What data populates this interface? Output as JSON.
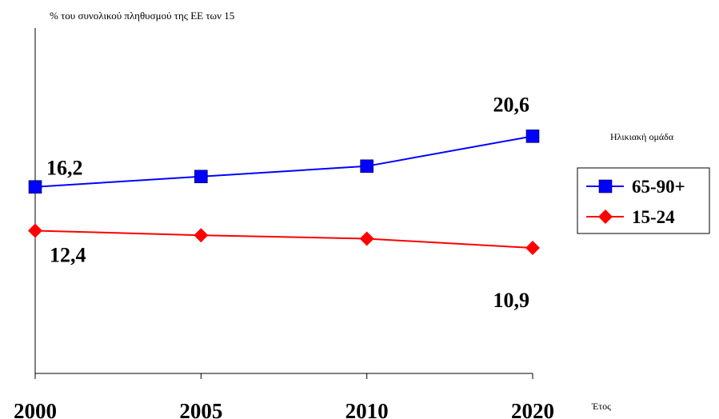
{
  "chart_data": {
    "type": "line",
    "ylabel": "% του συνολικού πληθυσμού της ΕΕ των 15",
    "xlabel": "Έτος",
    "categories": [
      "2000",
      "2005",
      "2010",
      "2020"
    ],
    "ylim": [
      0,
      30
    ],
    "legend_title": "Ηλικιακή ομάδα",
    "legend_position": "right",
    "series": [
      {
        "name": "65-90+",
        "color": "#0000FF",
        "marker": "square",
        "values": [
          16.2,
          17.1,
          18.0,
          20.6
        ],
        "labels": [
          "16,2",
          "",
          "",
          "20,6"
        ]
      },
      {
        "name": "15-24",
        "color": "#FF0000",
        "marker": "diamond",
        "values": [
          12.4,
          12.0,
          11.7,
          10.9
        ],
        "labels": [
          "12,4",
          "",
          "",
          "10,9"
        ]
      }
    ]
  }
}
